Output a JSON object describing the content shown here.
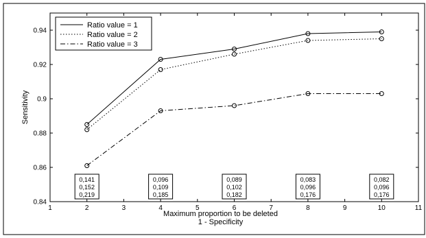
{
  "chart_data": {
    "type": "line",
    "xlabel_lines": [
      "Maximum proportion to be deleted",
      "1 - Specificity"
    ],
    "ylabel": "Sensitivity",
    "xlim": [
      1,
      11
    ],
    "ylim": [
      0.84,
      0.95
    ],
    "x_ticks": [
      1,
      2,
      3,
      4,
      5,
      6,
      7,
      8,
      9,
      10,
      11
    ],
    "y_ticks": [
      0.84,
      0.86,
      0.88,
      0.9,
      0.92,
      0.94
    ],
    "y_tick_labels": [
      "0.84",
      "0.86",
      "0.88",
      "0.9",
      "0.92",
      "0.94"
    ],
    "grid": false,
    "legend_position": "top-left",
    "x": [
      2,
      4,
      6,
      8,
      10
    ],
    "series": [
      {
        "name": "Ratio value = 1",
        "style": "solid",
        "values": [
          0.885,
          0.923,
          0.929,
          0.938,
          0.939
        ]
      },
      {
        "name": "Ratio value = 2",
        "style": "dotted",
        "values": [
          0.882,
          0.917,
          0.926,
          0.934,
          0.935
        ]
      },
      {
        "name": "Ratio value = 3",
        "style": "dashdot",
        "values": [
          0.861,
          0.893,
          0.896,
          0.903,
          0.903
        ]
      }
    ],
    "annotations": [
      {
        "x": 2,
        "lines": [
          "0,141",
          "0,152",
          "0,219"
        ]
      },
      {
        "x": 4,
        "lines": [
          "0,096",
          "0,109",
          "0,185"
        ]
      },
      {
        "x": 6,
        "lines": [
          "0,089",
          "0,102",
          "0,182"
        ]
      },
      {
        "x": 8,
        "lines": [
          "0,083",
          "0,096",
          "0,176"
        ]
      },
      {
        "x": 10,
        "lines": [
          "0,082",
          "0,096",
          "0,176"
        ]
      }
    ],
    "colors": {
      "line": "#000000",
      "marker": "#000000",
      "background": "#ffffff"
    }
  }
}
